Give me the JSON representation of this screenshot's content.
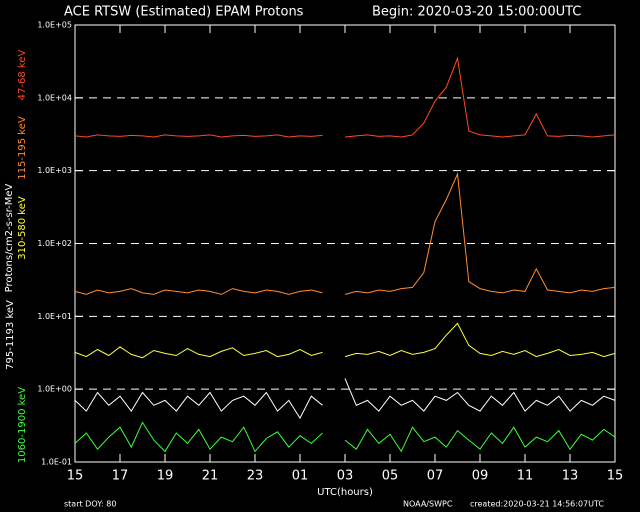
{
  "chart_data": {
    "type": "line",
    "title": "ACE RTSW (Estimated) EPAM Protons",
    "subtitle": "Begin: 2020-03-20 15:00:00UTC",
    "x_label": "UTC(hours)",
    "y_label": "Protons/cm2-s-sr-MeV",
    "footer_left": "start DOY:  80",
    "footer_center": "NOAA/SWPC",
    "footer_right": "created:2020-03-21 14:56:07UTC",
    "log_y": true,
    "grid": true,
    "xlim": [
      0,
      24
    ],
    "xticks": [
      {
        "value": 0,
        "label": "15"
      },
      {
        "value": 2,
        "label": "17"
      },
      {
        "value": 4,
        "label": "19"
      },
      {
        "value": 6,
        "label": "21"
      },
      {
        "value": 8,
        "label": "23"
      },
      {
        "value": 10,
        "label": "01"
      },
      {
        "value": 12,
        "label": "03"
      },
      {
        "value": 14,
        "label": "05"
      },
      {
        "value": 16,
        "label": "07"
      },
      {
        "value": 18,
        "label": "09"
      },
      {
        "value": 20,
        "label": "11"
      },
      {
        "value": 22,
        "label": "13"
      },
      {
        "value": 24,
        "label": "15"
      }
    ],
    "ylim": [
      0.1,
      100000
    ],
    "yticks": [
      {
        "value": 0.1,
        "label": "1.0E-01"
      },
      {
        "value": 1,
        "label": "1.0E+00"
      },
      {
        "value": 10,
        "label": "1.0E+01"
      },
      {
        "value": 100,
        "label": "1.0E+02"
      },
      {
        "value": 1000,
        "label": "1.0E+03"
      },
      {
        "value": 10000,
        "label": "1.0E+04"
      },
      {
        "value": 100000,
        "label": "1.0E+05"
      }
    ],
    "x": [
      0,
      0.5,
      1,
      1.5,
      2,
      2.5,
      3,
      3.5,
      4,
      4.5,
      5,
      5.5,
      6,
      6.5,
      7,
      7.5,
      8,
      8.5,
      9,
      9.5,
      10,
      10.5,
      11,
      11.5,
      12,
      12.5,
      13,
      13.5,
      14,
      14.5,
      15,
      15.5,
      16,
      16.5,
      17,
      17.5,
      18,
      18.5,
      19,
      19.5,
      20,
      20.5,
      21,
      21.5,
      22,
      22.5,
      23,
      23.5,
      24
    ],
    "series": [
      {
        "name": "47-68 keV",
        "color": "#ff4a26",
        "values": [
          3000,
          2900,
          3100,
          3000,
          2950,
          3050,
          3000,
          2900,
          3100,
          3000,
          2950,
          3000,
          3100,
          2900,
          3000,
          3050,
          2950,
          3000,
          3100,
          2900,
          3000,
          2950,
          3050,
          null,
          2900,
          3000,
          3100,
          2950,
          3000,
          2900,
          3100,
          4500,
          9000,
          14000,
          35000,
          3500,
          3100,
          3000,
          2900,
          3000,
          3100,
          6000,
          3000,
          2950,
          3050,
          3000,
          2900,
          3000,
          3100
        ]
      },
      {
        "name": "115-195 keV",
        "color": "#ff8c30",
        "values": [
          22,
          20,
          23,
          21,
          22,
          24,
          21,
          20,
          23,
          22,
          21,
          23,
          22,
          20,
          24,
          22,
          21,
          23,
          22,
          20,
          22,
          23,
          21,
          null,
          20,
          22,
          21,
          23,
          22,
          24,
          25,
          40,
          200,
          400,
          900,
          30,
          24,
          22,
          21,
          23,
          22,
          45,
          23,
          22,
          21,
          23,
          22,
          24,
          25
        ]
      },
      {
        "name": "310-580 keV",
        "color": "#ffff3c",
        "values": [
          3.2,
          2.8,
          3.5,
          2.9,
          3.8,
          3.0,
          2.7,
          3.4,
          3.1,
          2.9,
          3.6,
          3.0,
          2.8,
          3.3,
          3.7,
          2.9,
          3.1,
          3.4,
          2.8,
          3.0,
          3.5,
          2.9,
          3.2,
          null,
          2.8,
          3.1,
          3.0,
          3.3,
          2.9,
          3.4,
          3.0,
          3.2,
          3.6,
          5.5,
          8,
          4,
          3.1,
          2.9,
          3.3,
          3.0,
          3.4,
          2.8,
          3.1,
          3.5,
          2.9,
          3.0,
          3.2,
          2.8,
          3.1
        ]
      },
      {
        "name": "795-1193 keV",
        "color": "#ffffff",
        "values": [
          0.7,
          0.5,
          0.9,
          0.6,
          0.8,
          0.5,
          0.9,
          0.6,
          0.7,
          0.5,
          0.8,
          0.6,
          0.9,
          0.5,
          0.7,
          0.8,
          0.6,
          0.9,
          0.5,
          0.7,
          0.4,
          0.8,
          0.6,
          null,
          1.4,
          0.6,
          0.7,
          0.5,
          0.8,
          0.6,
          0.7,
          0.5,
          0.8,
          0.7,
          0.9,
          0.6,
          0.5,
          0.8,
          0.6,
          0.9,
          0.5,
          0.7,
          0.6,
          0.8,
          0.5,
          0.7,
          0.6,
          0.8,
          0.7
        ]
      },
      {
        "name": "1060-1900 keV",
        "color": "#3cff3c",
        "values": [
          0.18,
          0.25,
          0.15,
          0.22,
          0.3,
          0.16,
          0.35,
          0.2,
          0.14,
          0.25,
          0.18,
          0.28,
          0.15,
          0.22,
          0.19,
          0.3,
          0.14,
          0.21,
          0.26,
          0.16,
          0.23,
          0.18,
          0.25,
          null,
          0.2,
          0.15,
          0.28,
          0.18,
          0.24,
          0.14,
          0.3,
          0.19,
          0.22,
          0.16,
          0.27,
          0.2,
          0.15,
          0.25,
          0.18,
          0.3,
          0.16,
          0.22,
          0.19,
          0.27,
          0.15,
          0.24,
          0.2,
          0.28,
          0.22
        ]
      }
    ]
  }
}
